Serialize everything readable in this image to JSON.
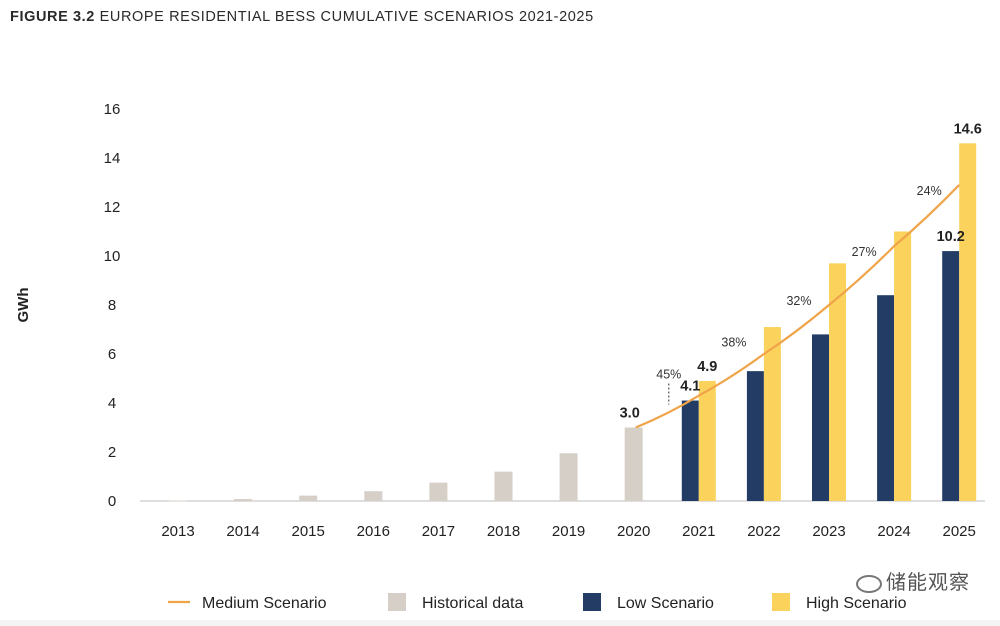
{
  "title": {
    "figure_no": "FIGURE 3.2",
    "text": "EUROPE RESIDENTIAL BESS CUMULATIVE SCENARIOS 2021-2025"
  },
  "watermark": "储能观察",
  "colors": {
    "historical": "#d6cfc7",
    "low": "#223c66",
    "high": "#fbd25c",
    "medium_line": "#f0a44a",
    "axis": "#bcbcbc"
  },
  "chart_data": {
    "type": "bar",
    "ylabel": "GWh",
    "xlabel": "",
    "ylim": [
      0,
      16
    ],
    "yticks": [
      0,
      2,
      4,
      6,
      8,
      10,
      12,
      14,
      16
    ],
    "grid": false,
    "legend_position": "bottom",
    "categories": [
      "2013",
      "2014",
      "2015",
      "2016",
      "2017",
      "2018",
      "2019",
      "2020",
      "2021",
      "2022",
      "2023",
      "2024",
      "2025"
    ],
    "series": [
      {
        "name": "Historical data",
        "kind": "bar",
        "color_key": "historical",
        "values": [
          0.02,
          0.08,
          0.22,
          0.4,
          0.75,
          1.2,
          1.95,
          3.0,
          null,
          null,
          null,
          null,
          null
        ]
      },
      {
        "name": "Low Scenario",
        "kind": "bar",
        "color_key": "low",
        "values": [
          null,
          null,
          null,
          null,
          null,
          null,
          null,
          null,
          4.1,
          5.3,
          6.8,
          8.4,
          10.2
        ]
      },
      {
        "name": "High Scenario",
        "kind": "bar",
        "color_key": "high",
        "values": [
          null,
          null,
          null,
          null,
          null,
          null,
          null,
          null,
          4.9,
          7.1,
          9.7,
          11.0,
          14.6
        ]
      },
      {
        "name": "Medium Scenario",
        "kind": "line",
        "color_key": "medium_line",
        "values": [
          null,
          null,
          null,
          null,
          null,
          null,
          null,
          3.0,
          4.3,
          6.0,
          8.0,
          10.4,
          12.9
        ]
      }
    ],
    "value_labels": [
      {
        "category": "2020",
        "series": "Historical data",
        "text": "3.0"
      },
      {
        "category": "2021",
        "series": "Low Scenario",
        "text": "4.1"
      },
      {
        "category": "2021",
        "series": "High Scenario",
        "text": "4.9"
      },
      {
        "category": "2025",
        "series": "Low Scenario",
        "text": "10.2"
      },
      {
        "category": "2025",
        "series": "High Scenario",
        "text": "14.6"
      }
    ],
    "growth_labels": [
      {
        "category": "2021",
        "text": "45%",
        "y": 5.0
      },
      {
        "category": "2022",
        "text": "38%",
        "y": 6.3
      },
      {
        "category": "2023",
        "text": "32%",
        "y": 8.0
      },
      {
        "category": "2024",
        "text": "27%",
        "y": 10.0
      },
      {
        "category": "2025",
        "text": "24%",
        "y": 12.5
      }
    ],
    "legend": [
      "Medium Scenario",
      "Historical data",
      "Low Scenario",
      "High Scenario"
    ]
  }
}
